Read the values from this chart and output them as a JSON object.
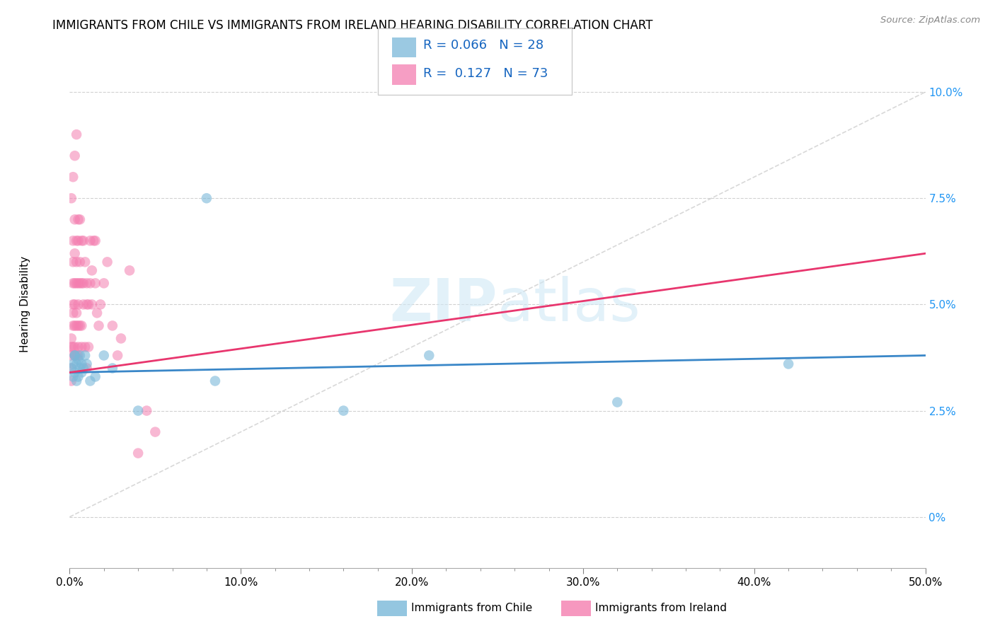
{
  "title": "IMMIGRANTS FROM CHILE VS IMMIGRANTS FROM IRELAND HEARING DISABILITY CORRELATION CHART",
  "source": "Source: ZipAtlas.com",
  "ylabel": "Hearing Disability",
  "legend_label_chile": "Immigrants from Chile",
  "legend_label_ireland": "Immigrants from Ireland",
  "chile_R": 0.066,
  "chile_N": 28,
  "ireland_R": 0.127,
  "ireland_N": 73,
  "xlim": [
    0.0,
    0.5
  ],
  "ylim": [
    -0.012,
    0.112
  ],
  "xticks": [
    0.0,
    0.1,
    0.2,
    0.3,
    0.4,
    0.5
  ],
  "xtick_labels": [
    "0.0%",
    "10.0%",
    "20.0%",
    "30.0%",
    "40.0%",
    "50.0%"
  ],
  "yticks": [
    0.0,
    0.025,
    0.05,
    0.075,
    0.1
  ],
  "ytick_labels": [
    "0%",
    "2.5%",
    "5.0%",
    "7.5%",
    "10.0%"
  ],
  "color_chile": "#7ab8d9",
  "color_ireland": "#f47eb0",
  "color_trendline_chile": "#3a87c8",
  "color_trendline_ireland": "#e8366e",
  "color_diagonal": "#c8c8c8",
  "background": "#ffffff",
  "chile_x": [
    0.001,
    0.002,
    0.002,
    0.003,
    0.003,
    0.004,
    0.004,
    0.005,
    0.005,
    0.006,
    0.006,
    0.007,
    0.007,
    0.008,
    0.009,
    0.01,
    0.012,
    0.015,
    0.02,
    0.025,
    0.04,
    0.08,
    0.085,
    0.16,
    0.21,
    0.32,
    0.42,
    0.003
  ],
  "chile_y": [
    0.035,
    0.036,
    0.033,
    0.034,
    0.038,
    0.032,
    0.036,
    0.037,
    0.033,
    0.035,
    0.038,
    0.034,
    0.036,
    0.035,
    0.038,
    0.036,
    0.032,
    0.033,
    0.038,
    0.035,
    0.025,
    0.075,
    0.032,
    0.025,
    0.038,
    0.027,
    0.036,
    0.038
  ],
  "ireland_x": [
    0.001,
    0.001,
    0.001,
    0.001,
    0.001,
    0.002,
    0.002,
    0.002,
    0.002,
    0.002,
    0.002,
    0.002,
    0.003,
    0.003,
    0.003,
    0.003,
    0.003,
    0.003,
    0.003,
    0.004,
    0.004,
    0.004,
    0.004,
    0.004,
    0.004,
    0.005,
    0.005,
    0.005,
    0.005,
    0.005,
    0.005,
    0.006,
    0.006,
    0.006,
    0.006,
    0.007,
    0.007,
    0.007,
    0.007,
    0.008,
    0.008,
    0.008,
    0.009,
    0.009,
    0.01,
    0.01,
    0.01,
    0.011,
    0.011,
    0.012,
    0.012,
    0.013,
    0.013,
    0.014,
    0.015,
    0.015,
    0.016,
    0.017,
    0.018,
    0.02,
    0.022,
    0.025,
    0.028,
    0.03,
    0.035,
    0.04,
    0.045,
    0.05,
    0.001,
    0.002,
    0.003,
    0.004,
    0.005
  ],
  "ireland_y": [
    0.035,
    0.04,
    0.042,
    0.038,
    0.032,
    0.05,
    0.055,
    0.04,
    0.045,
    0.06,
    0.065,
    0.048,
    0.04,
    0.045,
    0.055,
    0.038,
    0.05,
    0.062,
    0.07,
    0.045,
    0.06,
    0.048,
    0.038,
    0.055,
    0.065,
    0.04,
    0.045,
    0.055,
    0.065,
    0.038,
    0.05,
    0.055,
    0.045,
    0.06,
    0.07,
    0.055,
    0.04,
    0.065,
    0.045,
    0.055,
    0.05,
    0.065,
    0.06,
    0.04,
    0.05,
    0.055,
    0.035,
    0.04,
    0.05,
    0.055,
    0.065,
    0.05,
    0.058,
    0.065,
    0.055,
    0.065,
    0.048,
    0.045,
    0.05,
    0.055,
    0.06,
    0.045,
    0.038,
    0.042,
    0.058,
    0.015,
    0.025,
    0.02,
    0.075,
    0.08,
    0.085,
    0.09,
    0.07
  ],
  "chile_trend_x": [
    0.0,
    0.5
  ],
  "chile_trend_y": [
    0.034,
    0.038
  ],
  "ireland_trend_x": [
    0.0,
    0.5
  ],
  "ireland_trend_y": [
    0.034,
    0.062
  ]
}
